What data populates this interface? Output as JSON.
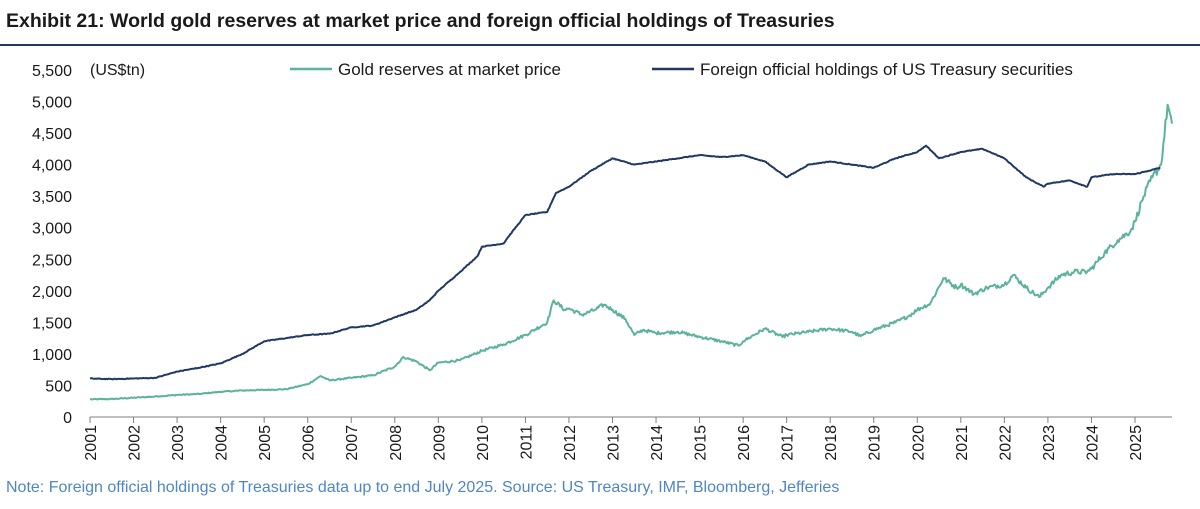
{
  "title": "Exhibit 21: World gold reserves at market price and foreign official holdings of Treasuries",
  "note": "Note: Foreign official holdings of Treasuries data up to end July 2025. Source: US Treasury, IMF, Bloomberg, Jefferies",
  "colors": {
    "gold": "#5bb39b",
    "treasuries": "#1f3864",
    "title_rule": "#1f3864",
    "note": "#4f86c6"
  },
  "chart_data": {
    "type": "line",
    "title": "World gold reserves at market price and foreign official holdings of Treasuries",
    "ylabel": "(US$tn)",
    "xlabel": "",
    "ylim": [
      0,
      5500
    ],
    "yticks": [
      "0",
      "500",
      "1,000",
      "1,500",
      "2,000",
      "2,500",
      "3,000",
      "3,500",
      "4,000",
      "4,500",
      "5,000",
      "5,500"
    ],
    "xlim": [
      2001,
      2025.85
    ],
    "xticks": [
      "2001",
      "2002",
      "2003",
      "2004",
      "2005",
      "2006",
      "2007",
      "2008",
      "2009",
      "2010",
      "2011",
      "2012",
      "2013",
      "2014",
      "2015",
      "2016",
      "2017",
      "2018",
      "2019",
      "2020",
      "2021",
      "2022",
      "2023",
      "2024",
      "2025"
    ],
    "legend_position": "top",
    "series": [
      {
        "name": "Gold reserves at market price",
        "color": "#5bb39b",
        "points": [
          [
            2001,
            280
          ],
          [
            2001.5,
            285
          ],
          [
            2002,
            305
          ],
          [
            2002.5,
            325
          ],
          [
            2003,
            350
          ],
          [
            2003.5,
            365
          ],
          [
            2004,
            400
          ],
          [
            2004.5,
            420
          ],
          [
            2005,
            430
          ],
          [
            2005.5,
            440
          ],
          [
            2006,
            520
          ],
          [
            2006.3,
            650
          ],
          [
            2006.5,
            580
          ],
          [
            2007,
            620
          ],
          [
            2007.5,
            660
          ],
          [
            2008,
            800
          ],
          [
            2008.2,
            950
          ],
          [
            2008.5,
            880
          ],
          [
            2008.8,
            740
          ],
          [
            2009,
            860
          ],
          [
            2009.5,
            900
          ],
          [
            2010,
            1050
          ],
          [
            2010.5,
            1150
          ],
          [
            2011,
            1300
          ],
          [
            2011.5,
            1500
          ],
          [
            2011.65,
            1850
          ],
          [
            2011.9,
            1700
          ],
          [
            2012,
            1720
          ],
          [
            2012.3,
            1620
          ],
          [
            2012.6,
            1700
          ],
          [
            2012.8,
            1780
          ],
          [
            2013,
            1700
          ],
          [
            2013.3,
            1550
          ],
          [
            2013.5,
            1300
          ],
          [
            2013.7,
            1380
          ],
          [
            2014,
            1330
          ],
          [
            2014.5,
            1350
          ],
          [
            2015,
            1270
          ],
          [
            2015.5,
            1200
          ],
          [
            2015.9,
            1130
          ],
          [
            2016,
            1200
          ],
          [
            2016.5,
            1400
          ],
          [
            2016.9,
            1270
          ],
          [
            2017,
            1300
          ],
          [
            2017.5,
            1350
          ],
          [
            2018,
            1400
          ],
          [
            2018.5,
            1350
          ],
          [
            2018.7,
            1280
          ],
          [
            2019,
            1380
          ],
          [
            2019.5,
            1500
          ],
          [
            2019.8,
            1600
          ],
          [
            2020,
            1700
          ],
          [
            2020.3,
            1800
          ],
          [
            2020.6,
            2200
          ],
          [
            2020.9,
            2050
          ],
          [
            2021,
            2100
          ],
          [
            2021.3,
            1950
          ],
          [
            2021.6,
            2050
          ],
          [
            2022,
            2100
          ],
          [
            2022.2,
            2250
          ],
          [
            2022.5,
            2050
          ],
          [
            2022.8,
            1900
          ],
          [
            2023,
            2050
          ],
          [
            2023.3,
            2250
          ],
          [
            2023.6,
            2300
          ],
          [
            2023.9,
            2300
          ],
          [
            2024,
            2350
          ],
          [
            2024.3,
            2600
          ],
          [
            2024.6,
            2800
          ],
          [
            2024.9,
            2950
          ],
          [
            2025,
            3100
          ],
          [
            2025.2,
            3500
          ],
          [
            2025.4,
            3800
          ],
          [
            2025.6,
            4000
          ],
          [
            2025.75,
            4950
          ],
          [
            2025.85,
            4650
          ]
        ]
      },
      {
        "name": "Foreign official holdings of US Treasury securities",
        "color": "#1f3864",
        "points": [
          [
            2001,
            610
          ],
          [
            2001.5,
            600
          ],
          [
            2002,
            610
          ],
          [
            2002.5,
            620
          ],
          [
            2003,
            720
          ],
          [
            2003.5,
            780
          ],
          [
            2004,
            850
          ],
          [
            2004.5,
            1000
          ],
          [
            2005,
            1200
          ],
          [
            2005.5,
            1250
          ],
          [
            2006,
            1300
          ],
          [
            2006.5,
            1320
          ],
          [
            2007,
            1420
          ],
          [
            2007.5,
            1450
          ],
          [
            2008,
            1580
          ],
          [
            2008.5,
            1700
          ],
          [
            2008.8,
            1850
          ],
          [
            2009,
            2000
          ],
          [
            2009.5,
            2300
          ],
          [
            2009.9,
            2550
          ],
          [
            2010,
            2700
          ],
          [
            2010.5,
            2750
          ],
          [
            2010.6,
            2850
          ],
          [
            2011,
            3200
          ],
          [
            2011.5,
            3250
          ],
          [
            2011.7,
            3550
          ],
          [
            2012,
            3650
          ],
          [
            2012.5,
            3900
          ],
          [
            2013,
            4100
          ],
          [
            2013.5,
            4000
          ],
          [
            2014,
            4050
          ],
          [
            2014.5,
            4100
          ],
          [
            2015,
            4150
          ],
          [
            2015.5,
            4120
          ],
          [
            2016,
            4150
          ],
          [
            2016.5,
            4050
          ],
          [
            2017,
            3800
          ],
          [
            2017.5,
            4000
          ],
          [
            2018,
            4050
          ],
          [
            2018.5,
            4000
          ],
          [
            2019,
            3950
          ],
          [
            2019.5,
            4100
          ],
          [
            2020,
            4200
          ],
          [
            2020.2,
            4300
          ],
          [
            2020.5,
            4100
          ],
          [
            2021,
            4200
          ],
          [
            2021.5,
            4250
          ],
          [
            2022,
            4100
          ],
          [
            2022.5,
            3800
          ],
          [
            2022.9,
            3650
          ],
          [
            2023,
            3700
          ],
          [
            2023.5,
            3750
          ],
          [
            2023.9,
            3650
          ],
          [
            2024,
            3800
          ],
          [
            2024.5,
            3850
          ],
          [
            2025,
            3850
          ],
          [
            2025.3,
            3900
          ],
          [
            2025.58,
            3950
          ]
        ]
      }
    ]
  }
}
